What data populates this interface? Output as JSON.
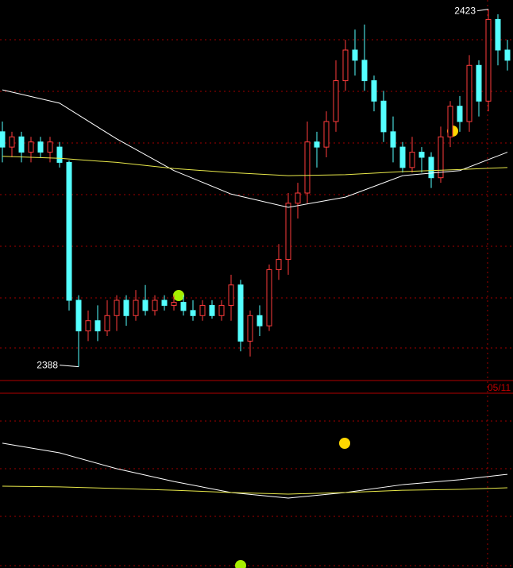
{
  "chart_data": [
    {
      "type": "candlestick",
      "ylim": [
        2386.8,
        2423.9
      ],
      "up_color": "#ff3c3c",
      "down_color": "#54ffff",
      "open": [
        2411,
        2409.5,
        2410.5,
        2409,
        2410,
        2409,
        2409.5,
        2408,
        2394.5,
        2391.5,
        2392.5,
        2391.5,
        2393,
        2394.5,
        2393,
        2394.5,
        2393.5,
        2394.5,
        2394,
        2394.3,
        2393.5,
        2393,
        2394,
        2393,
        2394,
        2396,
        2390.5,
        2393,
        2392,
        2397.5,
        2398.5,
        2404,
        2405,
        2410,
        2409.5,
        2412,
        2416,
        2419,
        2418,
        2416,
        2414,
        2411,
        2409.5,
        2407.5,
        2409,
        2408.5,
        2406.5,
        2410.5,
        2413.5,
        2412,
        2417.5,
        2414,
        2422,
        2419
      ],
      "high": [
        2412,
        2411,
        2411,
        2410.5,
        2410.5,
        2410.5,
        2410,
        2408.2,
        2395,
        2393.5,
        2394,
        2394.5,
        2395,
        2395,
        2395.5,
        2396,
        2395,
        2395,
        2395,
        2395,
        2394.5,
        2394.5,
        2394.5,
        2394.5,
        2397,
        2396.5,
        2393.5,
        2394,
        2398,
        2400,
        2405,
        2406,
        2412,
        2411,
        2413,
        2418,
        2420,
        2421,
        2421.5,
        2416.5,
        2415,
        2412.5,
        2410,
        2410.5,
        2409.5,
        2409,
        2411.5,
        2414,
        2414.5,
        2418.5,
        2418,
        2423,
        2422.5,
        2420
      ],
      "low": [
        2408,
        2408.5,
        2408,
        2408,
        2408.5,
        2408,
        2407.5,
        2393.5,
        2388,
        2390.5,
        2390.5,
        2391,
        2391.5,
        2392,
        2392.5,
        2393,
        2393,
        2393.5,
        2393.5,
        2393,
        2392.5,
        2392.5,
        2392.7,
        2392.5,
        2392.5,
        2389.5,
        2389,
        2391,
        2391.5,
        2396.5,
        2397,
        2402.5,
        2404,
        2407.5,
        2408.5,
        2411,
        2415,
        2416.5,
        2415,
        2413,
        2410,
        2408,
        2407,
        2407,
        2407,
        2405.5,
        2406,
        2409.5,
        2411,
        2411,
        2412.5,
        2413,
        2417.5,
        2417
      ],
      "close": [
        2409.5,
        2410.5,
        2409,
        2410,
        2409,
        2410,
        2408,
        2394.5,
        2391.5,
        2392.5,
        2391.5,
        2393,
        2394.5,
        2393,
        2394.5,
        2393.5,
        2394.5,
        2394,
        2394.3,
        2393.5,
        2393,
        2394,
        2393,
        2394,
        2396,
        2390.5,
        2393,
        2392,
        2397.5,
        2398.5,
        2404,
        2405,
        2410,
        2409.5,
        2412,
        2416,
        2419,
        2418,
        2416,
        2414,
        2411,
        2409.5,
        2407.5,
        2409,
        2408.5,
        2406.5,
        2410.5,
        2413.5,
        2412,
        2417.5,
        2414,
        2422,
        2419,
        2418
      ],
      "series": [
        {
          "color": "#ffffff",
          "x": [
            0,
            6,
            12,
            18,
            24,
            30,
            36,
            42,
            48,
            53
          ],
          "values": [
            2415.1,
            2413.8,
            2410.3,
            2407.2,
            2404.9,
            2403.6,
            2404.6,
            2406.7,
            2407.2,
            2409.0
          ]
        },
        {
          "color": "#e8e84a",
          "x": [
            0,
            6,
            12,
            18,
            24,
            30,
            36,
            42,
            48,
            53
          ],
          "values": [
            2408.6,
            2408.4,
            2408.0,
            2407.4,
            2407.0,
            2406.7,
            2406.8,
            2407.1,
            2407.3,
            2407.5
          ]
        }
      ],
      "extremes": [
        2423,
        2388
      ],
      "date_label": "05/11"
    },
    {
      "type": "line",
      "ylim": [
        0,
        100
      ],
      "series": [
        {
          "color": "#ffffff",
          "x": [
            0,
            6,
            12,
            18,
            24,
            30,
            36,
            42,
            48,
            53
          ],
          "values": [
            71.4,
            65.9,
            56.8,
            49.5,
            43.2,
            40.0,
            43.2,
            47.7,
            50.5,
            53.6
          ]
        },
        {
          "color": "#e8e84a",
          "x": [
            0,
            6,
            12,
            18,
            24,
            30,
            36,
            42,
            48,
            53
          ],
          "values": [
            46.8,
            46.4,
            45.5,
            44.5,
            43.2,
            42.3,
            43.2,
            44.5,
            45.0,
            45.9
          ]
        }
      ]
    }
  ]
}
